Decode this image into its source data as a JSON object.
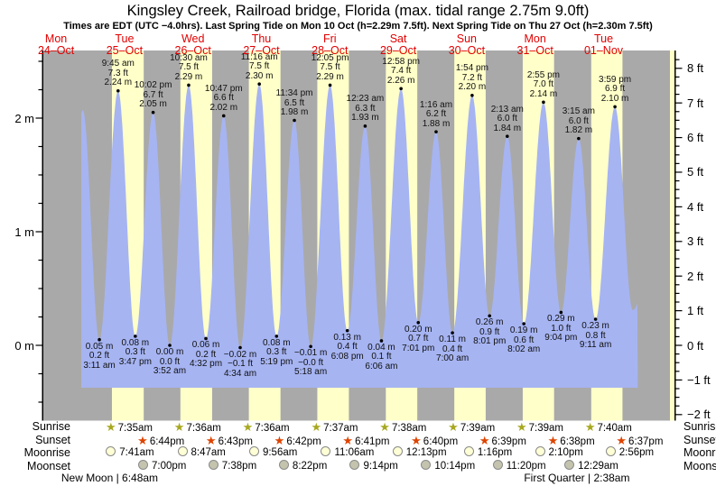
{
  "title": "Kingsley Creek, Railroad bridge, Florida (max. tidal range 2.75m 9.0ft)",
  "subtitle": "Times are EDT (UTC −4.0hrs). Last Spring Tide on Mon 10 Oct (h=2.29m 7.5ft). Next Spring Tide on Thu 27 Oct (h=2.30m 7.5ft)",
  "colors": {
    "night_band": "#a9a9a9",
    "day_band": "#ffffc9",
    "water": "#a6b4f2",
    "day_label_red": "#e10000",
    "sunrise_star": "#a8a820",
    "sunset_star": "#dd4400",
    "moonrise_fill": "#ffffd6",
    "moonset_fill": "#c4c4ae",
    "axis_black": "#000000"
  },
  "days": [
    {
      "dow": "Mon",
      "date": "24–Oct",
      "sunrise": null,
      "sunset": null,
      "moonrise": null,
      "moonset": null
    },
    {
      "dow": "Tue",
      "date": "25–Oct",
      "sunrise": "7:35am",
      "sunset": "6:44pm",
      "moonrise": "7:41am",
      "moonset": "7:00pm"
    },
    {
      "dow": "Wed",
      "date": "26–Oct",
      "sunrise": "7:36am",
      "sunset": "6:43pm",
      "moonrise": "8:47am",
      "moonset": "7:38pm"
    },
    {
      "dow": "Thu",
      "date": "27–Oct",
      "sunrise": "7:36am",
      "sunset": "6:42pm",
      "moonrise": "9:56am",
      "moonset": "8:22pm"
    },
    {
      "dow": "Fri",
      "date": "28–Oct",
      "sunrise": "7:37am",
      "sunset": "6:41pm",
      "moonrise": "11:06am",
      "moonset": "9:14pm"
    },
    {
      "dow": "Sat",
      "date": "29–Oct",
      "sunrise": "7:38am",
      "sunset": "6:40pm",
      "moonrise": "12:13pm",
      "moonset": "10:14pm"
    },
    {
      "dow": "Sun",
      "date": "30–Oct",
      "sunrise": "7:39am",
      "sunset": "6:39pm",
      "moonrise": "1:16pm",
      "moonset": "11:20pm"
    },
    {
      "dow": "Mon",
      "date": "31–Oct",
      "sunrise": "7:39am",
      "sunset": "6:38pm",
      "moonrise": "2:10pm",
      "moonset": null
    },
    {
      "dow": "Tue",
      "date": "01–Nov",
      "sunrise": "7:40am",
      "sunset": "6:37pm",
      "moonrise": "2:56pm",
      "moonset": "12:29am"
    }
  ],
  "almanac_row_labels": [
    "Sunrise",
    "Sunset",
    "Moonrise",
    "Moonset"
  ],
  "moon_phases": [
    {
      "label": "New Moon | 6:48am",
      "day": 1,
      "time": "6:48am"
    },
    {
      "label": "First Quarter | 2:38am",
      "day": 8,
      "time": "2:38am"
    }
  ],
  "axes": {
    "left_labels": [
      {
        "text": "2 m",
        "h": 2
      },
      {
        "text": "1 m",
        "h": 1
      },
      {
        "text": "0 m",
        "h": 0
      }
    ],
    "right_labels": [
      {
        "text": "8 ft",
        "ft": 8
      },
      {
        "text": "7 ft",
        "ft": 7
      },
      {
        "text": "6 ft",
        "ft": 6
      },
      {
        "text": "5 ft",
        "ft": 5
      },
      {
        "text": "4 ft",
        "ft": 4
      },
      {
        "text": "3 ft",
        "ft": 3
      },
      {
        "text": "2 ft",
        "ft": 2
      },
      {
        "text": "1 ft",
        "ft": 1
      },
      {
        "text": "0 ft",
        "ft": 0
      },
      {
        "text": "−1 ft",
        "ft": -1
      },
      {
        "text": "−2 ft",
        "ft": -2
      }
    ]
  },
  "chart_data": {
    "type": "area",
    "title": "Kingsley Creek, Railroad bridge, Florida tide heights",
    "x_unit": "hours (EDT), day 1 = Tue 25 Oct 00:00",
    "y_unit": "m",
    "ylim_m": [
      -0.67,
      2.6
    ],
    "legend": "none",
    "grid": "off",
    "extremes": [
      {
        "day": 0,
        "time": "9:22 pm",
        "type": "H",
        "h": 2.07,
        "m": null,
        "ft": null
      },
      {
        "day": 1,
        "time": "3:11 am",
        "type": "L",
        "h": 0.05,
        "m": "0.05 m",
        "ft": "0.2 ft"
      },
      {
        "day": 1,
        "time": "9:45 am",
        "type": "H",
        "h": 2.24,
        "m": "2.24 m",
        "ft": "7.3 ft"
      },
      {
        "day": 1,
        "time": "3:47 pm",
        "type": "L",
        "h": 0.08,
        "m": "0.08 m",
        "ft": "0.3 ft"
      },
      {
        "day": 1,
        "time": "10:02 pm",
        "type": "H",
        "h": 2.05,
        "m": "2.05 m",
        "ft": "6.7 ft"
      },
      {
        "day": 2,
        "time": "3:52 am",
        "type": "L",
        "h": 0.0,
        "m": "0.00 m",
        "ft": "0.0 ft"
      },
      {
        "day": 2,
        "time": "10:30 am",
        "type": "H",
        "h": 2.29,
        "m": "2.29 m",
        "ft": "7.5 ft"
      },
      {
        "day": 2,
        "time": "4:32 pm",
        "type": "L",
        "h": 0.06,
        "m": "0.06 m",
        "ft": "0.2 ft"
      },
      {
        "day": 2,
        "time": "10:47 pm",
        "type": "H",
        "h": 2.02,
        "m": "2.02 m",
        "ft": "6.6 ft"
      },
      {
        "day": 3,
        "time": "4:34 am",
        "type": "L",
        "h": -0.02,
        "m": "−0.02 m",
        "ft": "−0.1 ft"
      },
      {
        "day": 3,
        "time": "11:16 am",
        "type": "H",
        "h": 2.3,
        "m": "2.30 m",
        "ft": "7.5 ft"
      },
      {
        "day": 3,
        "time": "5:19 pm",
        "type": "L",
        "h": 0.08,
        "m": "0.08 m",
        "ft": "0.3 ft"
      },
      {
        "day": 3,
        "time": "11:34 pm",
        "type": "H",
        "h": 1.98,
        "m": "1.98 m",
        "ft": "6.5 ft"
      },
      {
        "day": 4,
        "time": "5:18 am",
        "type": "L",
        "h": -0.01,
        "m": "−0.01 m",
        "ft": "−0.0 ft"
      },
      {
        "day": 4,
        "time": "12:05 pm",
        "type": "H",
        "h": 2.29,
        "m": "2.29 m",
        "ft": "7.5 ft"
      },
      {
        "day": 4,
        "time": "6:08 pm",
        "type": "L",
        "h": 0.13,
        "m": "0.13 m",
        "ft": "0.4 ft"
      },
      {
        "day": 5,
        "time": "12:23 am",
        "type": "H",
        "h": 1.93,
        "m": "1.93 m",
        "ft": "6.3 ft"
      },
      {
        "day": 5,
        "time": "6:06 am",
        "type": "L",
        "h": 0.04,
        "m": "0.04 m",
        "ft": "0.1 ft"
      },
      {
        "day": 5,
        "time": "12:58 pm",
        "type": "H",
        "h": 2.26,
        "m": "2.26 m",
        "ft": "7.4 ft"
      },
      {
        "day": 5,
        "time": "7:01 pm",
        "type": "L",
        "h": 0.2,
        "m": "0.20 m",
        "ft": "0.7 ft"
      },
      {
        "day": 6,
        "time": "1:16 am",
        "type": "H",
        "h": 1.88,
        "m": "1.88 m",
        "ft": "6.2 ft"
      },
      {
        "day": 6,
        "time": "7:00 am",
        "type": "L",
        "h": 0.11,
        "m": "0.11 m",
        "ft": "0.4 ft"
      },
      {
        "day": 6,
        "time": "1:54 pm",
        "type": "H",
        "h": 2.2,
        "m": "2.20 m",
        "ft": "7.2 ft"
      },
      {
        "day": 6,
        "time": "8:01 pm",
        "type": "L",
        "h": 0.26,
        "m": "0.26 m",
        "ft": "0.9 ft"
      },
      {
        "day": 7,
        "time": "2:13 am",
        "type": "H",
        "h": 1.84,
        "m": "1.84 m",
        "ft": "6.0 ft"
      },
      {
        "day": 7,
        "time": "8:02 am",
        "type": "L",
        "h": 0.19,
        "m": "0.19 m",
        "ft": "0.6 ft"
      },
      {
        "day": 7,
        "time": "2:55 pm",
        "type": "H",
        "h": 2.14,
        "m": "2.14 m",
        "ft": "7.0 ft"
      },
      {
        "day": 7,
        "time": "9:04 pm",
        "type": "L",
        "h": 0.29,
        "m": "0.29 m",
        "ft": "1.0 ft"
      },
      {
        "day": 8,
        "time": "3:15 am",
        "type": "H",
        "h": 1.82,
        "m": "1.82 m",
        "ft": "6.0 ft"
      },
      {
        "day": 8,
        "time": "9:11 am",
        "type": "L",
        "h": 0.23,
        "m": "0.23 m",
        "ft": "0.8 ft"
      },
      {
        "day": 8,
        "time": "3:59 pm",
        "type": "H",
        "h": 2.1,
        "m": "2.10 m",
        "ft": "6.9 ft"
      }
    ]
  }
}
